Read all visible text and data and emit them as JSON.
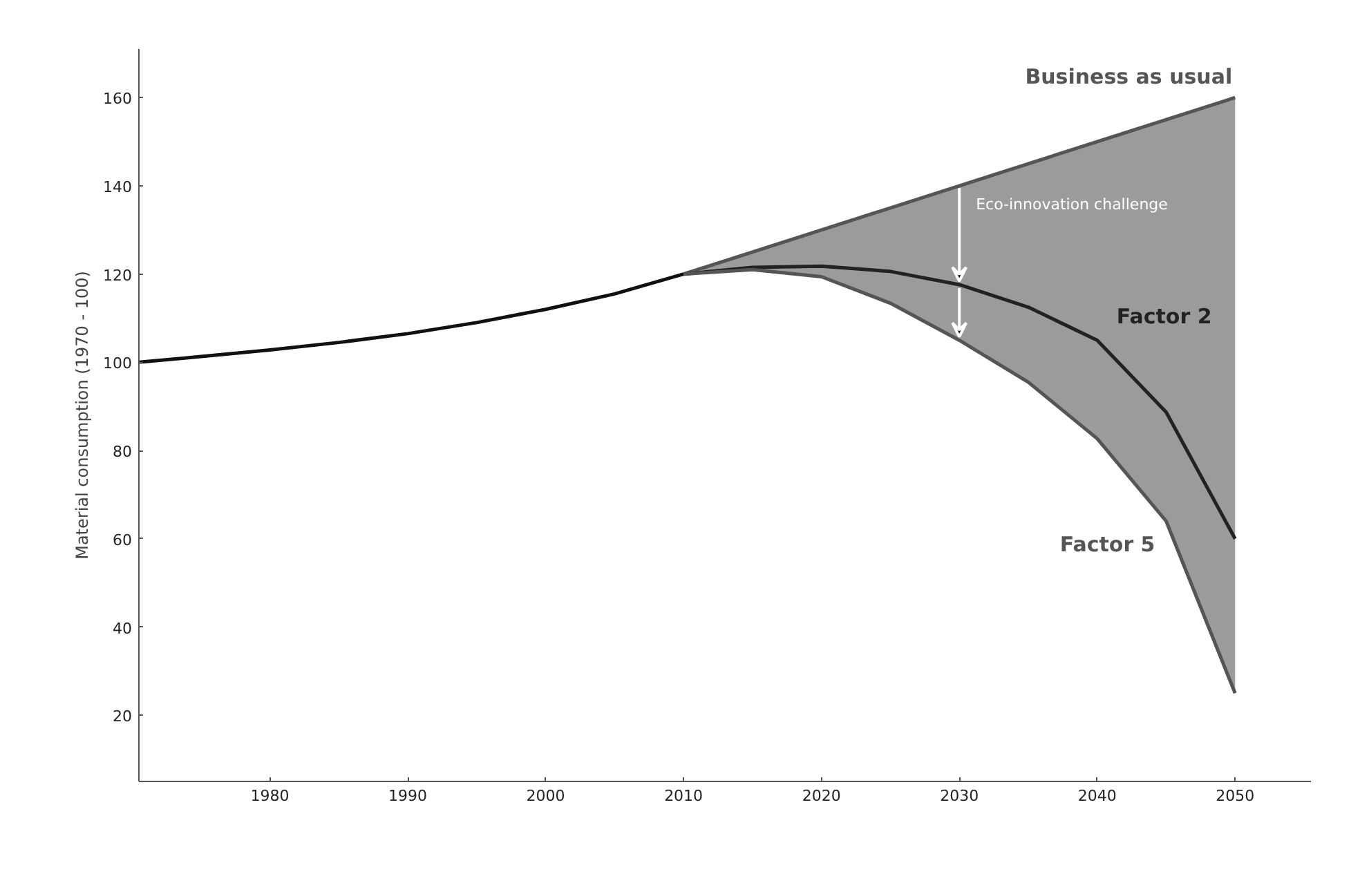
{
  "chart_data": {
    "type": "line",
    "ylabel": "Material consumption (1970 - 100)",
    "xlim": [
      1970.5,
      2055.5
    ],
    "ylim": [
      5,
      171
    ],
    "xticks": [
      1980,
      1990,
      2000,
      2010,
      2020,
      2030,
      2040,
      2050
    ],
    "yticks": [
      20,
      40,
      60,
      80,
      100,
      120,
      140,
      160
    ],
    "grid": false,
    "line_style": "solid",
    "marker": "none",
    "series": [
      {
        "color": "#111111",
        "x": [
          1970.5,
          1975,
          1980,
          1985,
          1990,
          1995,
          2000,
          2005,
          2010
        ],
        "values": [
          100,
          101.3,
          102.8,
          104.5,
          106.5,
          109,
          112,
          115.5,
          120
        ]
      },
      {
        "name": "Business as usual",
        "color": "#555555",
        "x": [
          2010,
          2050
        ],
        "values": [
          120,
          160
        ]
      },
      {
        "name": "Factor 2",
        "color": "#222222",
        "x": [
          2010,
          2015,
          2020,
          2025,
          2030,
          2035,
          2040,
          2045,
          2050
        ],
        "values": [
          120,
          121.5,
          121.8,
          120.6,
          117.6,
          112.5,
          105,
          88.7,
          60
        ],
        "lower": [
          120,
          121,
          119.4,
          113.4,
          105,
          95.5,
          82.7,
          64,
          25
        ],
        "upper": [
          120,
          125,
          130,
          135,
          140,
          145,
          150,
          155,
          160
        ]
      },
      {
        "name": "Factor 5",
        "color": "#555555",
        "x": [
          2010,
          2015,
          2020,
          2025,
          2030,
          2035,
          2040,
          2045,
          2050
        ],
        "values": [
          120,
          121,
          119.4,
          113.4,
          105,
          95.5,
          82.7,
          64,
          25
        ]
      }
    ],
    "annotations": [
      {
        "text": "Eco-innovation challenge",
        "x": 2030,
        "y": 140
      }
    ]
  }
}
